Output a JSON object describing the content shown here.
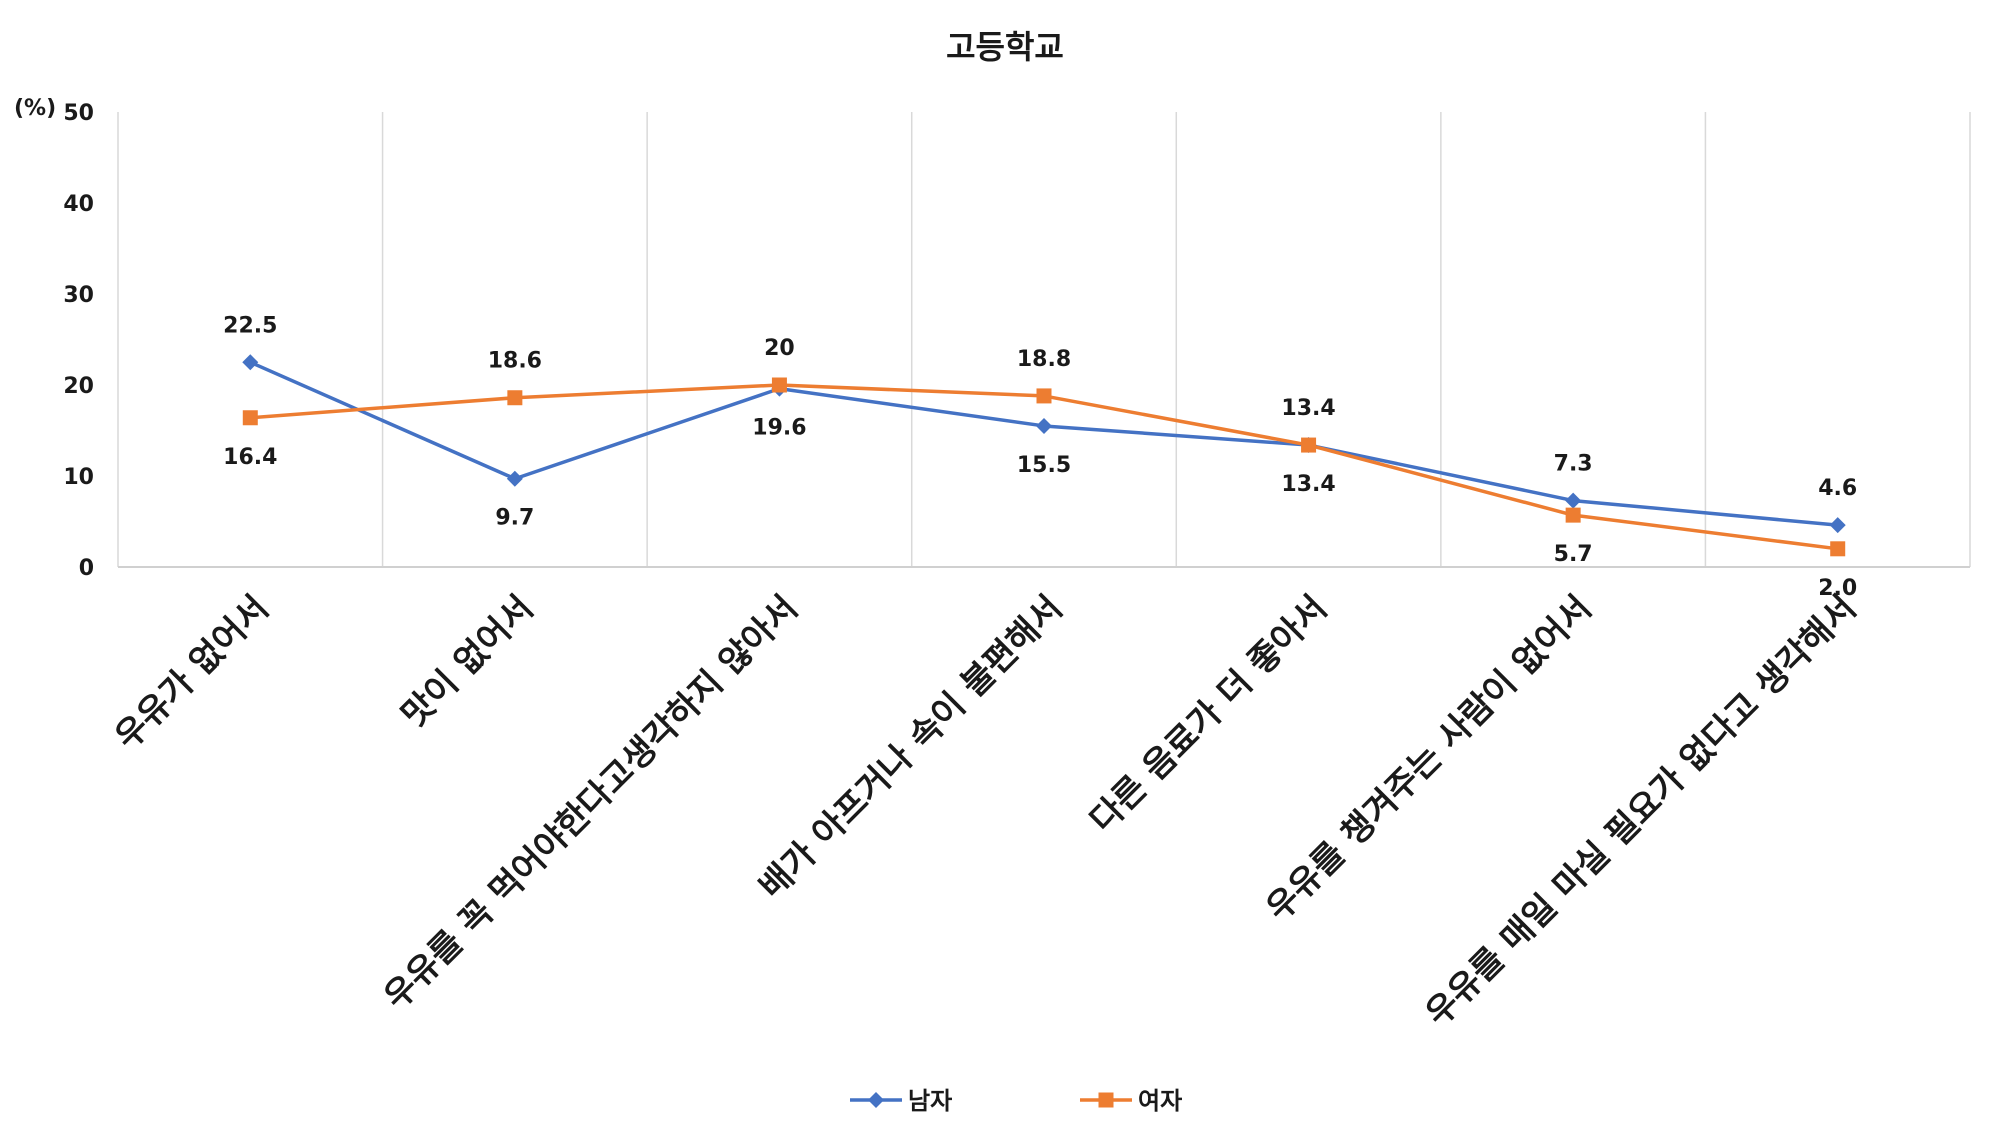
{
  "chart_data": {
    "type": "line",
    "title": "고등학교",
    "unit_label": "(%)",
    "ylim": [
      0,
      50
    ],
    "yticks": [
      "0",
      "10",
      "20",
      "30",
      "40",
      "50"
    ],
    "categories": [
      "우유가 없어서",
      "맛이 없어서",
      "우유를 꼭 먹어야한다고생각하지 않아서",
      "배가 아프거나 속이 불편해서",
      "다른 음료가 더 좋아서",
      "우유를 챙겨주는 사람이 없어서",
      "우유를 매일 마실 필요가 없다고 생각해서"
    ],
    "series": [
      {
        "name": "남자",
        "color": "#4472C4",
        "marker": "diamond",
        "values": [
          22.5,
          9.7,
          19.6,
          15.5,
          13.4,
          7.3,
          4.6
        ],
        "labels": [
          "22.5",
          "9.7",
          "19.6",
          "15.5",
          "13.4",
          "7.3",
          "4.6"
        ],
        "label_side": [
          "above",
          "below",
          "below",
          "below",
          "below",
          "above",
          "above"
        ]
      },
      {
        "name": "여자",
        "color": "#ED7D31",
        "marker": "square",
        "values": [
          16.4,
          18.6,
          20,
          18.8,
          13.4,
          5.7,
          2.0
        ],
        "labels": [
          "16.4",
          "18.6",
          "20",
          "18.8",
          "13.4",
          "5.7",
          "2.0"
        ],
        "label_side": [
          "below",
          "above",
          "above",
          "above",
          "above",
          "below",
          "below"
        ]
      }
    ],
    "grid": {
      "vertical": true,
      "horizontal": false
    },
    "legend": "bottom-center"
  }
}
